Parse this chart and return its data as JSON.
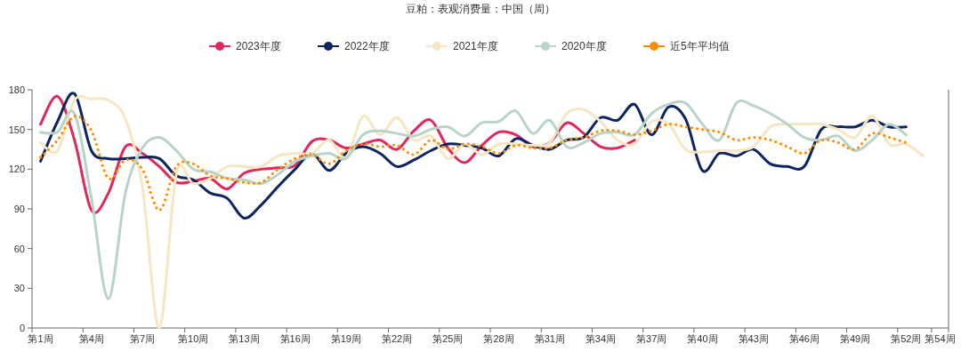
{
  "chart_data": {
    "type": "line",
    "title": "豆粕：表观消费量：中国（周）",
    "categories": [
      "第1周",
      null,
      null,
      "第4周",
      null,
      null,
      "第7周",
      null,
      null,
      "第10周",
      null,
      null,
      "第13周",
      null,
      null,
      "第16周",
      null,
      null,
      "第19周",
      null,
      null,
      "第22周",
      null,
      null,
      "第25周",
      null,
      null,
      "第28周",
      null,
      null,
      "第31周",
      null,
      null,
      "第34周",
      null,
      null,
      "第37周",
      null,
      null,
      "第40周",
      null,
      null,
      "第43周",
      null,
      null,
      "第46周",
      null,
      null,
      "第49周",
      null,
      null,
      "第52周",
      null,
      "第54周"
    ],
    "ylim": [
      0,
      180
    ],
    "yticks": [
      0,
      30,
      60,
      90,
      120,
      150,
      180
    ],
    "grid": false,
    "legend": "top",
    "marker": "none",
    "series": [
      {
        "name": "2023年度",
        "color": "#e2275a",
        "line_style": "solid",
        "values": [
          154,
          175,
          142,
          89,
          102,
          137,
          132,
          122,
          110,
          111,
          113,
          105,
          117,
          120,
          121,
          123,
          141,
          142,
          136,
          139,
          142,
          135,
          149,
          157,
          136,
          125,
          138,
          148,
          146,
          137,
          140,
          155,
          147,
          137,
          136,
          142,
          null,
          null,
          null,
          null,
          null,
          null,
          null,
          null,
          null,
          null,
          null,
          null,
          null,
          null,
          null,
          null,
          null,
          null
        ]
      },
      {
        "name": "2022年度",
        "color": "#0c2461",
        "line_style": "solid",
        "values": [
          126,
          156,
          177,
          134,
          128,
          128,
          129,
          128,
          115,
          112,
          102,
          98,
          83,
          93,
          107,
          120,
          132,
          119,
          132,
          137,
          132,
          122,
          127,
          134,
          139,
          138,
          136,
          130,
          143,
          138,
          135,
          142,
          144,
          159,
          157,
          169,
          146,
          167,
          158,
          119,
          132,
          130,
          135,
          124,
          122,
          122,
          150,
          152,
          152,
          157,
          152,
          152,
          null,
          null
        ]
      },
      {
        "name": "2021年度",
        "color": "#f5e6c4",
        "line_style": "solid",
        "values": [
          140,
          134,
          172,
          173,
          172,
          158,
          107,
          0,
          116,
          109,
          113,
          122,
          122,
          122,
          130,
          132,
          132,
          142,
          129,
          160,
          146,
          159,
          142,
          145,
          128,
          139,
          131,
          139,
          139,
          138,
          140,
          162,
          165,
          156,
          142,
          139,
          156,
          154,
          135,
          133,
          134,
          134,
          137,
          152,
          154,
          154,
          154,
          150,
          144,
          160,
          139,
          139,
          130,
          null
        ]
      },
      {
        "name": "2020年度",
        "color": "#b8d4c8",
        "line_style": "solid",
        "values": [
          148,
          148,
          162,
          98,
          22,
          102,
          136,
          144,
          134,
          120,
          118,
          113,
          112,
          109,
          116,
          126,
          130,
          132,
          128,
          146,
          149,
          147,
          145,
          150,
          152,
          145,
          155,
          156,
          164,
          147,
          157,
          137,
          140,
          147,
          148,
          146,
          162,
          169,
          170,
          154,
          142,
          170,
          168,
          162,
          154,
          144,
          142,
          145,
          134,
          142,
          154,
          146,
          null,
          null
        ]
      },
      {
        "name": "近5年平均值",
        "color": "#ff8c00",
        "line_style": "dotted",
        "values": [
          129,
          142,
          160,
          149,
          113,
          127,
          120,
          89,
          122,
          124,
          115,
          113,
          110,
          110,
          120,
          128,
          131,
          124,
          134,
          139,
          137,
          138,
          131,
          142,
          135,
          139,
          137,
          132,
          138,
          136,
          136,
          142,
          144,
          149,
          149,
          146,
          149,
          154,
          152,
          150,
          148,
          142,
          144,
          142,
          137,
          132,
          142,
          140,
          135,
          147,
          144,
          140,
          null,
          null
        ]
      }
    ]
  }
}
